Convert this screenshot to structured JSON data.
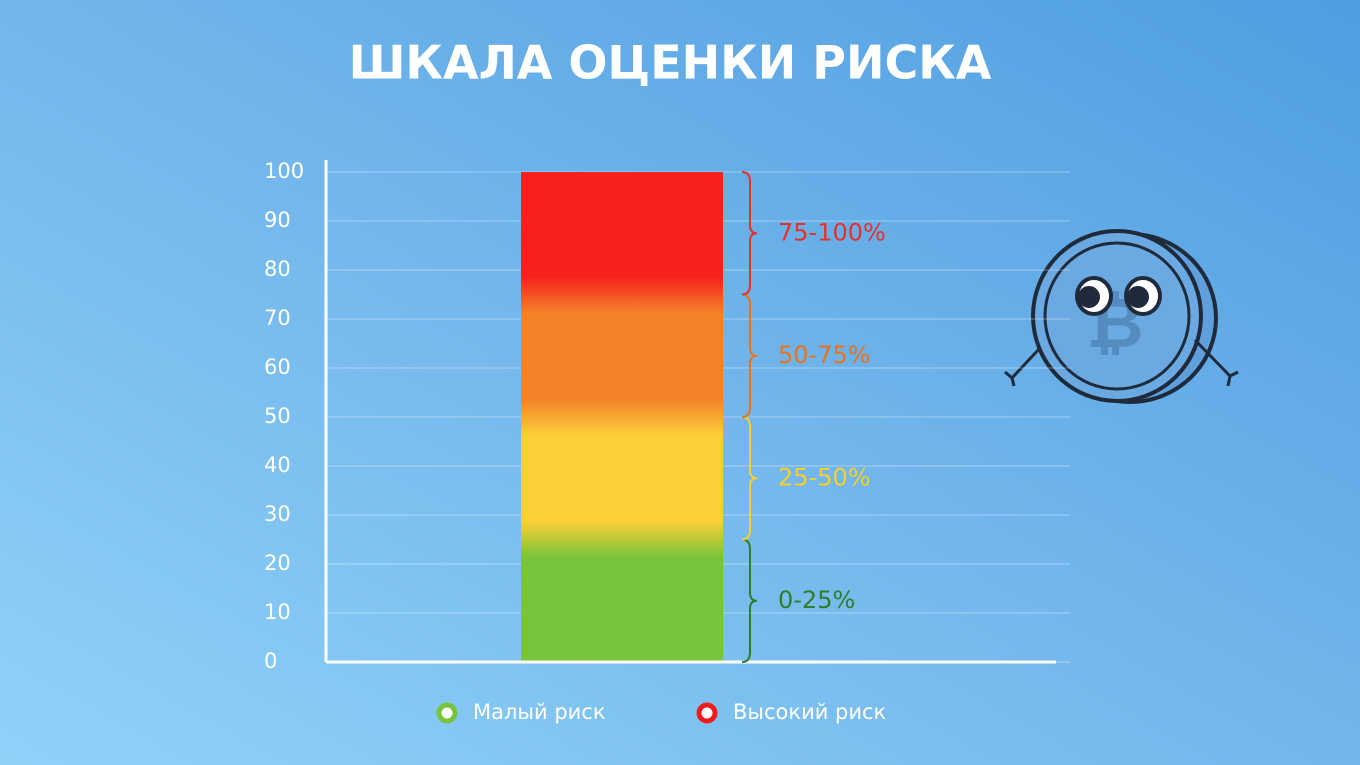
{
  "chart_data": {
    "type": "bar",
    "title": "ШКАЛА ОЦЕНКИ РИСКА",
    "categories": [
      null
    ],
    "values": [
      100
    ],
    "ylim": [
      0,
      100
    ],
    "yticks": [
      0,
      10,
      20,
      30,
      40,
      50,
      60,
      70,
      80,
      90,
      100
    ],
    "grid": true,
    "ranges": [
      {
        "label": "0-25%",
        "from": 0,
        "to": 25,
        "color": "#2f7d2a",
        "bar_color": "#78c43a"
      },
      {
        "label": "25-50%",
        "from": 25,
        "to": 50,
        "color": "#f5d02a",
        "bar_color": "#fccf38"
      },
      {
        "label": "50-75%",
        "from": 50,
        "to": 75,
        "color": "#e8731c",
        "bar_color": "#f2822a"
      },
      {
        "label": "75-100%",
        "from": 75,
        "to": 100,
        "color": "#e8302a",
        "bar_color": "#f8201a"
      }
    ],
    "legend": [
      {
        "name": "Малый риск",
        "color": "#78c43a"
      },
      {
        "name": "Высокий риск",
        "color": "#f01c1c"
      }
    ]
  }
}
